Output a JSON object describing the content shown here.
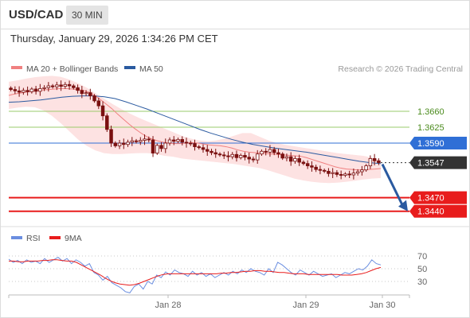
{
  "header": {
    "pair": "USD/CAD",
    "timeframe": "30 MIN",
    "datetime": "Thursday, January 29, 2026 1:34:26 PM CET"
  },
  "legend": {
    "ma20_label": "MA 20 + Bollinger Bands",
    "ma50_label": "MA 50",
    "credit": "Research © 2026 Trading Central"
  },
  "rsi_legend": {
    "rsi_label": "RSI",
    "ma9_label": "9MA"
  },
  "colors": {
    "ma20": "#f08080",
    "bollinger_fill": "#fde2e2",
    "ma50": "#2a5aa0",
    "resistance_green": "#9acb6b",
    "pivot_blue": "#2f6fd6",
    "support_red": "#e81c1c",
    "current_price": "#333333",
    "candle": "#7a1010",
    "arrow": "#2a5aa0",
    "rsi": "#6a8ee0",
    "rsi_ma": "#e81c1c"
  },
  "chart_data": [
    {
      "type": "candlestick",
      "title": "USD/CAD 30 MIN",
      "ylim": [
        1.3415,
        1.373
      ],
      "x_ticks": [
        "Jan 28",
        "Jan 29",
        "Jan 30"
      ],
      "levels": [
        {
          "name": "resistance-2",
          "value": 1.366,
          "label": "1.3660",
          "style": "green"
        },
        {
          "name": "resistance-1",
          "value": 1.3625,
          "label": "1.3625",
          "style": "green"
        },
        {
          "name": "pivot",
          "value": 1.359,
          "label": "1.3590",
          "style": "blue"
        },
        {
          "name": "last-price",
          "value": 1.3547,
          "label": "1.3547",
          "style": "current"
        },
        {
          "name": "support-1",
          "value": 1.347,
          "label": "1.3470",
          "style": "red"
        },
        {
          "name": "support-2",
          "value": 1.344,
          "label": "1.3440",
          "style": "red"
        }
      ],
      "close": [
        1.3708,
        1.3705,
        1.3702,
        1.3706,
        1.3703,
        1.3709,
        1.3704,
        1.371,
        1.3712,
        1.3716,
        1.3714,
        1.3718,
        1.3715,
        1.3719,
        1.3716,
        1.3712,
        1.3706,
        1.3699,
        1.3701,
        1.3694,
        1.3683,
        1.3672,
        1.365,
        1.362,
        1.359,
        1.3584,
        1.359,
        1.3587,
        1.3592,
        1.3595,
        1.3593,
        1.3596,
        1.3599,
        1.3597,
        1.3568,
        1.3585,
        1.3578,
        1.359,
        1.3597,
        1.3594,
        1.3598,
        1.3592,
        1.359,
        1.3589,
        1.3582,
        1.358,
        1.3576,
        1.3572,
        1.3569,
        1.3566,
        1.3564,
        1.3562,
        1.356,
        1.3565,
        1.3558,
        1.3563,
        1.3559,
        1.3555,
        1.3553,
        1.3566,
        1.3572,
        1.357,
        1.3576,
        1.3569,
        1.3566,
        1.3557,
        1.356,
        1.355,
        1.3556,
        1.3548,
        1.3545,
        1.354,
        1.3537,
        1.3532,
        1.353,
        1.3528,
        1.3523,
        1.3525,
        1.3521,
        1.3519,
        1.3522,
        1.352,
        1.3524,
        1.3527,
        1.3531,
        1.354,
        1.3556,
        1.3551,
        1.3547
      ],
      "ma20": [
        1.3695,
        1.3698,
        1.37,
        1.3702,
        1.3704,
        1.3706,
        1.3707,
        1.3708,
        1.3709,
        1.371,
        1.371,
        1.3709,
        1.3708,
        1.3706,
        1.3702,
        1.3695,
        1.3686,
        1.3676,
        1.3666,
        1.3654,
        1.3643,
        1.3632,
        1.3622,
        1.3613,
        1.3605,
        1.3599,
        1.3595,
        1.3592,
        1.359,
        1.3589,
        1.3589,
        1.359,
        1.3591,
        1.359,
        1.3588,
        1.3586,
        1.3585,
        1.3584,
        1.3582,
        1.3579,
        1.3575,
        1.3572,
        1.357,
        1.3569,
        1.3568,
        1.3567,
        1.3566,
        1.3565,
        1.3564,
        1.3563,
        1.3562,
        1.3561,
        1.3558,
        1.3554,
        1.355,
        1.3546,
        1.3542,
        1.3538,
        1.3535,
        1.3533,
        1.3532,
        1.3531,
        1.3531,
        1.3532,
        1.3533,
        1.3534
      ],
      "bb_upper": [
        1.3725,
        1.3728,
        1.3732,
        1.3735,
        1.3737,
        1.3738,
        1.3736,
        1.373,
        1.3722,
        1.3712,
        1.37,
        1.3688,
        1.3676,
        1.3665,
        1.3655,
        1.3646,
        1.3638,
        1.363,
        1.3622,
        1.3614,
        1.3606,
        1.36,
        1.3596,
        1.3594,
        1.3596,
        1.36,
        1.3606,
        1.3612,
        1.3612,
        1.3604,
        1.3596,
        1.359,
        1.3586,
        1.3583,
        1.358,
        1.3577,
        1.3574,
        1.3571,
        1.3568,
        1.3566,
        1.3564,
        1.3562,
        1.3558,
        1.3553
      ],
      "bb_lower": [
        1.3665,
        1.3668,
        1.367,
        1.3669,
        1.3662,
        1.365,
        1.3634,
        1.3616,
        1.3598,
        1.3584,
        1.3574,
        1.3568,
        1.3566,
        1.3566,
        1.3567,
        1.3568,
        1.3568,
        1.3566,
        1.3562,
        1.356,
        1.3556,
        1.3554,
        1.3552,
        1.355,
        1.3548,
        1.3546,
        1.3544,
        1.3541,
        1.3538,
        1.3535,
        1.353,
        1.3524,
        1.3518,
        1.3512,
        1.3508,
        1.3505,
        1.3503,
        1.3502,
        1.3503,
        1.3505,
        1.3507,
        1.351,
        1.3512,
        1.3513
      ],
      "ma50": [
        1.368,
        1.3681,
        1.3683,
        1.3685,
        1.3688,
        1.3691,
        1.3693,
        1.3694,
        1.3694,
        1.3692,
        1.3688,
        1.3681,
        1.3673,
        1.3665,
        1.3656,
        1.3647,
        1.3638,
        1.3629,
        1.362,
        1.3612,
        1.3605,
        1.3598,
        1.3592,
        1.3587,
        1.3583,
        1.3579,
        1.3576,
        1.3573,
        1.357,
        1.3566,
        1.3562,
        1.3558,
        1.3554,
        1.355,
        1.3547,
        1.3545
      ],
      "forecast": {
        "from": 1.3547,
        "to": 1.344
      }
    },
    {
      "type": "line",
      "title": "RSI",
      "ylim": [
        10,
        80
      ],
      "y_ticks": [
        70,
        50,
        30
      ],
      "series": [
        {
          "name": "RSI",
          "values": [
            65,
            60,
            63,
            58,
            64,
            60,
            62,
            58,
            66,
            60,
            64,
            68,
            62,
            66,
            58,
            64,
            60,
            54,
            58,
            44,
            40,
            32,
            38,
            28,
            24,
            20,
            14,
            12,
            22,
            26,
            18,
            30,
            26,
            40,
            36,
            45,
            40,
            48,
            44,
            42,
            38,
            46,
            40,
            44,
            38,
            42,
            36,
            40,
            44,
            40,
            46,
            42,
            48,
            44,
            50,
            46,
            44,
            40,
            50,
            44,
            60,
            56,
            50,
            44,
            40,
            48,
            44,
            40,
            46,
            42,
            38,
            40,
            42,
            36,
            40,
            44,
            42,
            46,
            50,
            48,
            54,
            64,
            58,
            56
          ]
        },
        {
          "name": "9MA",
          "values": [
            62,
            62,
            61,
            61,
            62,
            62,
            62,
            63,
            63,
            64,
            64,
            63,
            62,
            62,
            60,
            56,
            52,
            48,
            44,
            40,
            35,
            31,
            28,
            26,
            25,
            24,
            25,
            27,
            30,
            33,
            36,
            39,
            41,
            42,
            42,
            42,
            42,
            42,
            42,
            42,
            42,
            42,
            42,
            42,
            43,
            43,
            44,
            44,
            45,
            46,
            46,
            47,
            47,
            46,
            46,
            45,
            44,
            44,
            43,
            42,
            42,
            42,
            41,
            41,
            41,
            41,
            41,
            41,
            41,
            40,
            40,
            40,
            41,
            42,
            44,
            47,
            50,
            52
          ]
        }
      ]
    }
  ]
}
